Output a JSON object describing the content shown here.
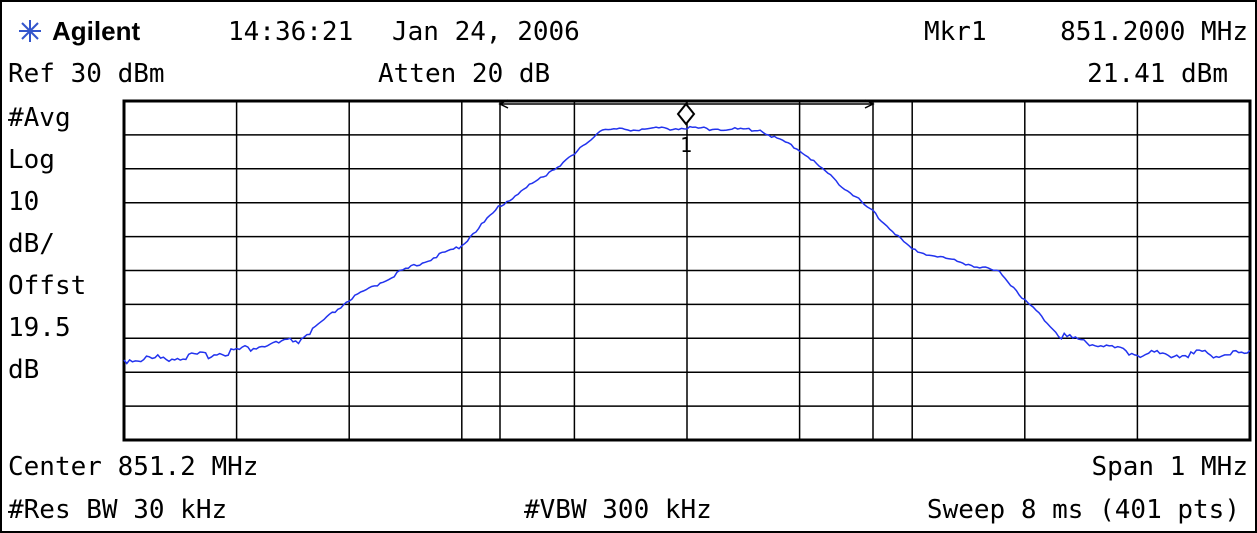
{
  "header": {
    "brand": "Agilent",
    "time": "14:36:21",
    "date": "Jan 24, 2006",
    "marker_name": "Mkr1",
    "marker_freq": "851.2000 MHz",
    "ref": "Ref 30 dBm",
    "atten": "Atten 20 dB",
    "marker_level": "21.41 dBm"
  },
  "scale": [
    "#Avg",
    "Log",
    "10",
    "dB/",
    "Offst",
    "19.5",
    "dB"
  ],
  "marker_label": "1",
  "footer": {
    "center": "Center 851.2 MHz",
    "span": "Span 1 MHz",
    "rbw": "#Res BW 30 kHz",
    "vbw": "#VBW 300 kHz",
    "sweep": "Sweep 8 ms (401 pts)"
  }
}
